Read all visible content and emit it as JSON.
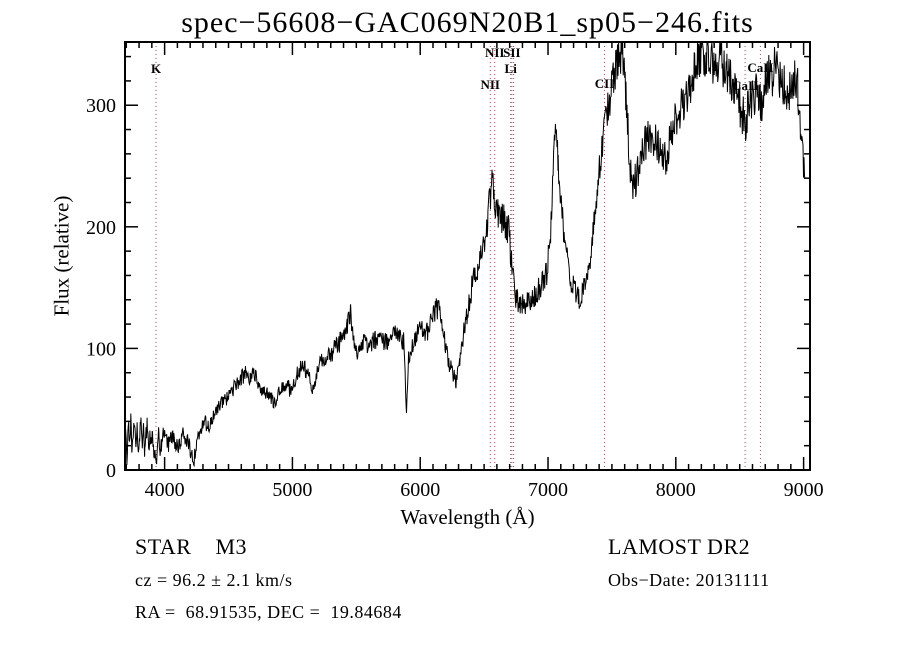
{
  "title": "spec−56608−GAC069N20B1_sp05−246.fits",
  "annotations": {
    "object_type": "STAR    M3",
    "survey": "LAMOST DR2",
    "cz": "cz = 96.2 ± 2.1 km/s",
    "obs_date": "Obs−Date: 20131111",
    "coords": "RA =  68.91535, DEC =  19.84684"
  },
  "chart_data": {
    "type": "line",
    "title": "spec−56608−GAC069N20B1_sp05−246.fits",
    "xlabel": "Wavelength (Å)",
    "ylabel": "Flux (relative)",
    "xlim": [
      3690,
      9050
    ],
    "ylim": [
      0,
      352
    ],
    "xticks": [
      4000,
      5000,
      6000,
      7000,
      8000,
      9000
    ],
    "yticks": [
      0,
      100,
      200,
      300
    ],
    "x_minor_step": 100,
    "y_minor_step": 20,
    "grid": false,
    "legend": "none",
    "line_color": "#000000",
    "marker_line_color": "#a14f4f",
    "noise": {
      "base": 3,
      "rel": 0.05,
      "blue_boost": 1.8
    },
    "spectral_lines": [
      {
        "wavelength": 3933,
        "label": "K",
        "dy": 31
      },
      {
        "wavelength": 6548,
        "label": "NII",
        "dy": 47
      },
      {
        "wavelength": 6583,
        "label": "NII",
        "dy": 15
      },
      {
        "wavelength": 6708,
        "label": "Li",
        "dy": 31
      },
      {
        "wavelength": 6717,
        "label": "SII",
        "dy": 15
      },
      {
        "wavelength": 6731,
        "label": "",
        "dy": 0
      },
      {
        "wavelength": 7442,
        "label": "CII",
        "dy": 46
      },
      {
        "wavelength": 8542,
        "label": "CaII",
        "dy": 48
      },
      {
        "wavelength": 8662,
        "label": "CaII",
        "dy": 30
      }
    ],
    "spectrum": [
      [
        3695,
        30
      ],
      [
        3705,
        5
      ],
      [
        3715,
        45
      ],
      [
        3725,
        20
      ],
      [
        3735,
        40
      ],
      [
        3745,
        15
      ],
      [
        3755,
        35
      ],
      [
        3765,
        45
      ],
      [
        3775,
        20
      ],
      [
        3785,
        40
      ],
      [
        3795,
        12
      ],
      [
        3805,
        30
      ],
      [
        3815,
        42
      ],
      [
        3825,
        18
      ],
      [
        3835,
        32
      ],
      [
        3845,
        12
      ],
      [
        3855,
        28
      ],
      [
        3865,
        38
      ],
      [
        3875,
        15
      ],
      [
        3885,
        30
      ],
      [
        3895,
        20
      ],
      [
        3905,
        35
      ],
      [
        3915,
        12
      ],
      [
        3925,
        22
      ],
      [
        3933,
        4
      ],
      [
        3945,
        25
      ],
      [
        3955,
        30
      ],
      [
        3965,
        10
      ],
      [
        3975,
        22
      ],
      [
        3985,
        32
      ],
      [
        4000,
        28
      ],
      [
        4030,
        22
      ],
      [
        4060,
        26
      ],
      [
        4100,
        18
      ],
      [
        4140,
        28
      ],
      [
        4180,
        22
      ],
      [
        4210,
        15
      ],
      [
        4227,
        6
      ],
      [
        4250,
        22
      ],
      [
        4280,
        32
      ],
      [
        4310,
        38
      ],
      [
        4340,
        33
      ],
      [
        4370,
        42
      ],
      [
        4400,
        48
      ],
      [
        4440,
        54
      ],
      [
        4480,
        58
      ],
      [
        4520,
        64
      ],
      [
        4560,
        70
      ],
      [
        4600,
        76
      ],
      [
        4640,
        80
      ],
      [
        4670,
        74
      ],
      [
        4700,
        80
      ],
      [
        4730,
        70
      ],
      [
        4760,
        66
      ],
      [
        4790,
        63
      ],
      [
        4830,
        60
      ],
      [
        4861,
        54
      ],
      [
        4890,
        64
      ],
      [
        4920,
        68
      ],
      [
        4950,
        72
      ],
      [
        4980,
        66
      ],
      [
        5010,
        72
      ],
      [
        5040,
        80
      ],
      [
        5070,
        86
      ],
      [
        5110,
        82
      ],
      [
        5140,
        74
      ],
      [
        5170,
        64
      ],
      [
        5200,
        84
      ],
      [
        5240,
        90
      ],
      [
        5280,
        94
      ],
      [
        5320,
        98
      ],
      [
        5360,
        103
      ],
      [
        5400,
        112
      ],
      [
        5430,
        121
      ],
      [
        5455,
        127
      ],
      [
        5480,
        106
      ],
      [
        5510,
        96
      ],
      [
        5540,
        102
      ],
      [
        5570,
        106
      ],
      [
        5600,
        101
      ],
      [
        5640,
        106
      ],
      [
        5680,
        109
      ],
      [
        5720,
        106
      ],
      [
        5760,
        104
      ],
      [
        5800,
        112
      ],
      [
        5840,
        108
      ],
      [
        5870,
        105
      ],
      [
        5893,
        48
      ],
      [
        5910,
        95
      ],
      [
        5950,
        106
      ],
      [
        5980,
        112
      ],
      [
        6010,
        116
      ],
      [
        6050,
        112
      ],
      [
        6090,
        122
      ],
      [
        6130,
        133
      ],
      [
        6160,
        128
      ],
      [
        6190,
        108
      ],
      [
        6220,
        90
      ],
      [
        6250,
        80
      ],
      [
        6280,
        72
      ],
      [
        6310,
        92
      ],
      [
        6350,
        118
      ],
      [
        6400,
        148
      ],
      [
        6450,
        168
      ],
      [
        6500,
        188
      ],
      [
        6530,
        208
      ],
      [
        6550,
        228
      ],
      [
        6562,
        244
      ],
      [
        6580,
        222
      ],
      [
        6610,
        212
      ],
      [
        6650,
        206
      ],
      [
        6690,
        198
      ],
      [
        6720,
        166
      ],
      [
        6750,
        142
      ],
      [
        6790,
        134
      ],
      [
        6830,
        138
      ],
      [
        6870,
        142
      ],
      [
        6910,
        146
      ],
      [
        6950,
        152
      ],
      [
        6990,
        162
      ],
      [
        7020,
        196
      ],
      [
        7050,
        284
      ],
      [
        7080,
        258
      ],
      [
        7110,
        210
      ],
      [
        7150,
        176
      ],
      [
        7190,
        152
      ],
      [
        7240,
        140
      ],
      [
        7290,
        152
      ],
      [
        7340,
        182
      ],
      [
        7390,
        232
      ],
      [
        7440,
        282
      ],
      [
        7490,
        306
      ],
      [
        7540,
        336
      ],
      [
        7580,
        349
      ],
      [
        7610,
        312
      ],
      [
        7640,
        248
      ],
      [
        7670,
        234
      ],
      [
        7710,
        246
      ],
      [
        7750,
        264
      ],
      [
        7790,
        278
      ],
      [
        7830,
        272
      ],
      [
        7870,
        262
      ],
      [
        7910,
        254
      ],
      [
        7950,
        268
      ],
      [
        8000,
        288
      ],
      [
        8050,
        299
      ],
      [
        8100,
        310
      ],
      [
        8150,
        330
      ],
      [
        8200,
        346
      ],
      [
        8250,
        341
      ],
      [
        8300,
        331
      ],
      [
        8350,
        336
      ],
      [
        8400,
        331
      ],
      [
        8450,
        316
      ],
      [
        8500,
        301
      ],
      [
        8542,
        286
      ],
      [
        8580,
        304
      ],
      [
        8620,
        311
      ],
      [
        8662,
        299
      ],
      [
        8700,
        318
      ],
      [
        8740,
        324
      ],
      [
        8780,
        330
      ],
      [
        8820,
        324
      ],
      [
        8860,
        314
      ],
      [
        8900,
        308
      ],
      [
        8930,
        330
      ],
      [
        8955,
        312
      ],
      [
        8975,
        280
      ],
      [
        8995,
        252
      ],
      [
        9010,
        240
      ]
    ]
  }
}
